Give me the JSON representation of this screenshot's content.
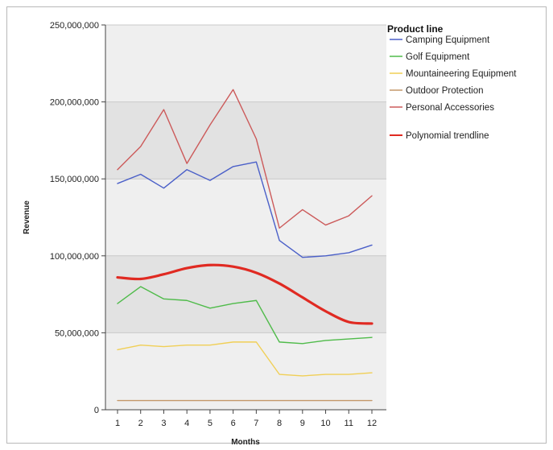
{
  "chart_data": {
    "type": "line",
    "xlabel": "Months",
    "ylabel": "Revenue",
    "x": [
      1,
      2,
      3,
      4,
      5,
      6,
      7,
      8,
      9,
      10,
      11,
      12
    ],
    "ylim": [
      0,
      250000000
    ],
    "yticks": [
      0,
      50000000,
      100000000,
      150000000,
      200000000,
      250000000
    ],
    "ytick_labels": [
      "0",
      "50,000,000",
      "100,000,000",
      "150,000,000",
      "200,000,000",
      "250,000,000"
    ],
    "grid": "horizontal",
    "background_bands": true,
    "legend": {
      "title": "Product line",
      "position": "right"
    },
    "series": [
      {
        "name": "Camping Equipment",
        "color": "#4a5fc8",
        "values": [
          147000000,
          153000000,
          144000000,
          156000000,
          149000000,
          158000000,
          161000000,
          110000000,
          99000000,
          100000000,
          102000000,
          107000000
        ]
      },
      {
        "name": "Golf Equipment",
        "color": "#4fbb4a",
        "values": [
          69000000,
          80000000,
          72000000,
          71000000,
          66000000,
          69000000,
          71000000,
          44000000,
          43000000,
          45000000,
          46000000,
          47000000
        ]
      },
      {
        "name": "Mountaineering Equipment",
        "color": "#f0cf56",
        "values": [
          39000000,
          42000000,
          41000000,
          42000000,
          42000000,
          44000000,
          44000000,
          23000000,
          22000000,
          23000000,
          23000000,
          24000000
        ]
      },
      {
        "name": "Outdoor Protection",
        "color": "#c4986a",
        "values": [
          6000000,
          6000000,
          6000000,
          6000000,
          6000000,
          6000000,
          6000000,
          6000000,
          6000000,
          6000000,
          6000000,
          6000000
        ]
      },
      {
        "name": "Personal Accessories",
        "color": "#cc5a5a",
        "values": [
          156000000,
          171000000,
          195000000,
          160000000,
          185000000,
          208000000,
          176000000,
          118000000,
          130000000,
          120000000,
          126000000,
          139000000
        ]
      },
      {
        "name": "Polynomial trendline",
        "color": "#e02a22",
        "trend": true,
        "values": [
          86000000,
          85000000,
          88000000,
          92000000,
          94000000,
          93000000,
          89000000,
          82000000,
          73000000,
          64000000,
          57000000,
          56000000
        ]
      }
    ]
  }
}
